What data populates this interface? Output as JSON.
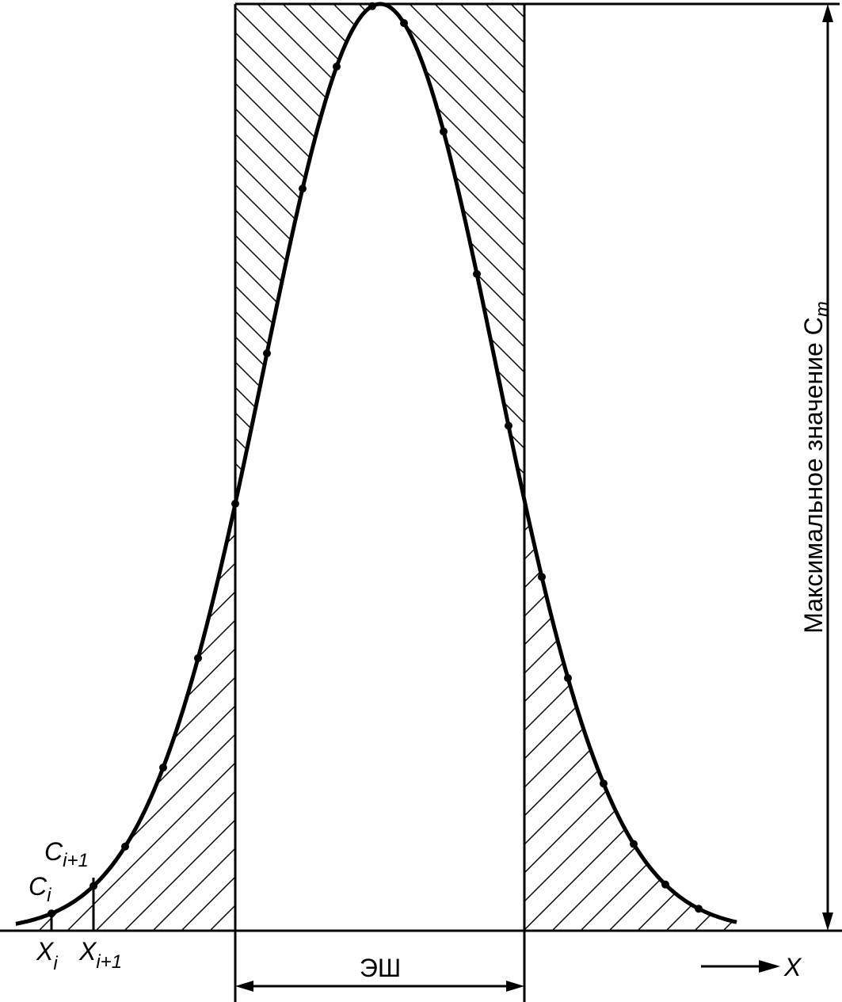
{
  "labels": {
    "c_i": {
      "base": "C",
      "sub": "i"
    },
    "c_i1": {
      "base": "C",
      "sub": "i+1"
    },
    "x_i": {
      "base": "X",
      "sub": "i"
    },
    "x_i1": {
      "base": "X",
      "sub": "i+1"
    },
    "width": "ЭШ",
    "axis": "X",
    "max": {
      "base": "Максимальное значение C",
      "sub": "m"
    }
  }
}
